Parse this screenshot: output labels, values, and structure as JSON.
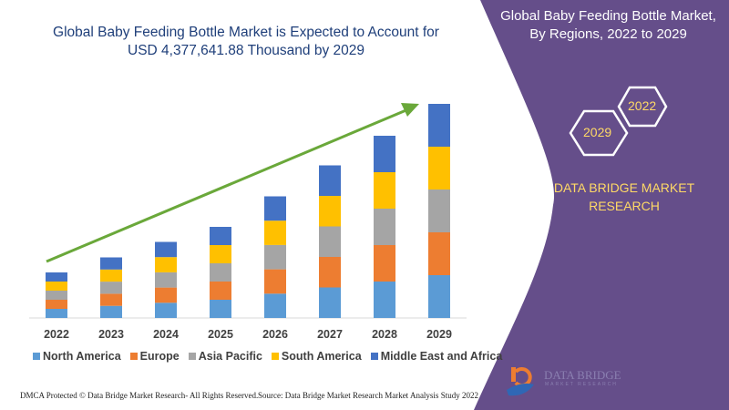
{
  "title": {
    "line1": "Global Baby Feeding Bottle Market is Expected to Account for",
    "line2": "USD 4,377,641.88 Thousand by 2029"
  },
  "side_panel": {
    "title_line1": "Global Baby Feeding Bottle Market,",
    "title_line2": "By Regions, 2022 to 2029",
    "hex_years": [
      "2022",
      "2029"
    ],
    "brand_line1": "DATA BRIDGE MARKET",
    "brand_line2": "RESEARCH",
    "logo_text": "DATA BRIDGE",
    "logo_subtext": "MARKET RESEARCH",
    "color": "#654e8a"
  },
  "footer": {
    "dmca": "DMCA Protected © Data Bridge Market Research- All Rights Reserved.",
    "source": "Source: Data Bridge Market Research Market Analysis Study 2022"
  },
  "chart_data": {
    "type": "bar",
    "stacked": true,
    "categories": [
      "2022",
      "2023",
      "2024",
      "2025",
      "2026",
      "2027",
      "2028",
      "2029"
    ],
    "series": [
      {
        "name": "North America",
        "color": "#5b9bd5",
        "values": [
          10,
          13.3,
          16.7,
          20,
          26.7,
          33.5,
          40,
          47
        ]
      },
      {
        "name": "Europe",
        "color": "#ed7d31",
        "values": [
          10,
          13.3,
          16.7,
          20,
          26.7,
          33.5,
          40,
          47
        ]
      },
      {
        "name": "Asia Pacific",
        "color": "#a5a5a5",
        "values": [
          10,
          13.3,
          16.7,
          20,
          26.7,
          33.5,
          40,
          47
        ]
      },
      {
        "name": "South America",
        "color": "#ffc000",
        "values": [
          10,
          13.3,
          16.7,
          20,
          26.7,
          33.5,
          40,
          47
        ]
      },
      {
        "name": "Middle East and Africa",
        "color": "#4472c4",
        "values": [
          10,
          13.3,
          16.7,
          20,
          26.7,
          33.5,
          40,
          47
        ]
      }
    ],
    "ylim": [
      0,
      240
    ],
    "grid": false,
    "y_axis_shown": false,
    "legend_position": "bottom",
    "trend_arrow_color": "#6aa83a"
  }
}
